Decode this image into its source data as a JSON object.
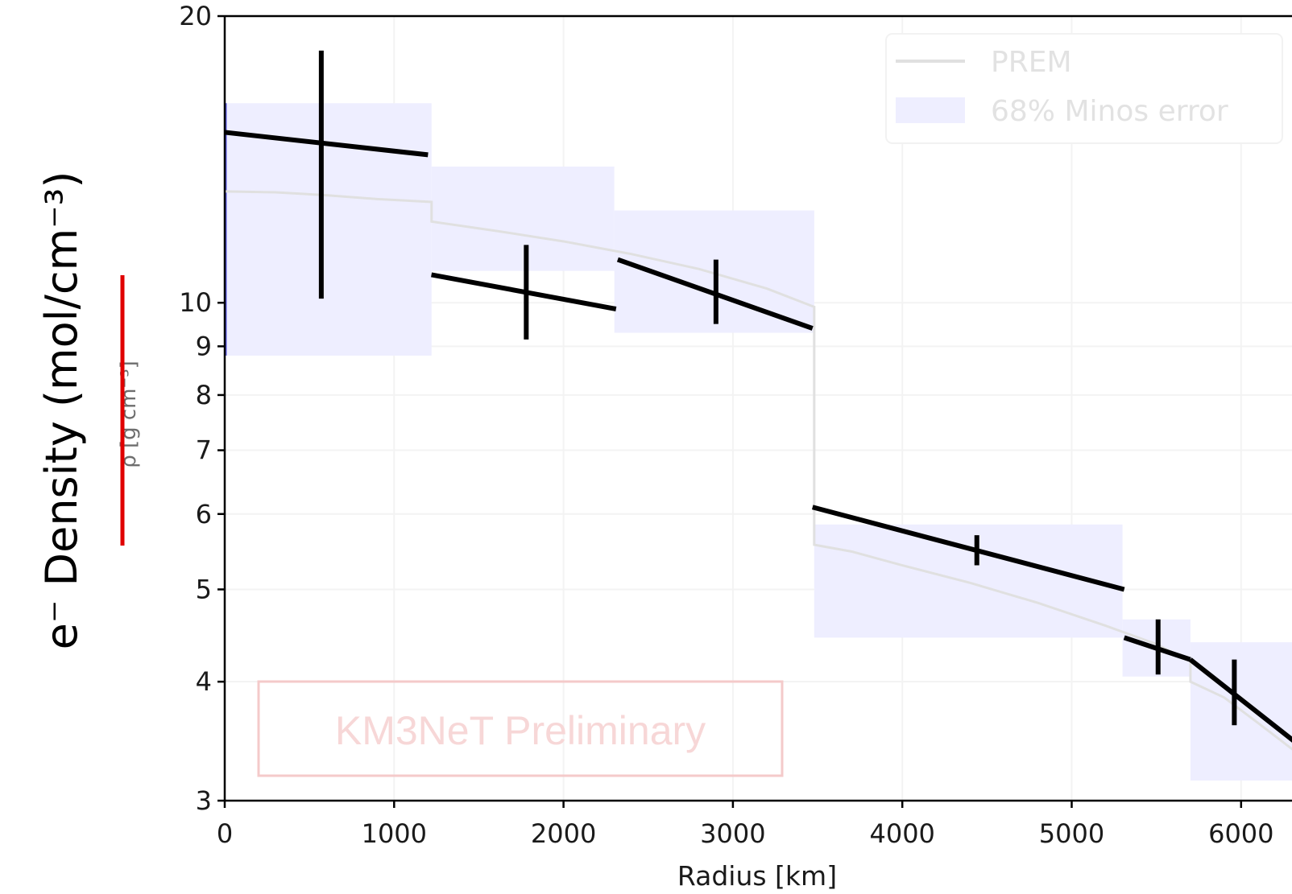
{
  "chart_data": {
    "type": "line",
    "xlabel": "Radius [km]",
    "ylabel": "e⁻ Density (mol/cm⁻³)",
    "ylabel_struck": "ρ [g cm⁻³]",
    "xlim": [
      0,
      6371
    ],
    "ylim": [
      3,
      20
    ],
    "yscale": "log",
    "xticks": [
      0,
      1000,
      2000,
      3000,
      4000,
      5000,
      6000
    ],
    "yticks": [
      3,
      4,
      5,
      6,
      7,
      8,
      9,
      10,
      20
    ],
    "grid": true,
    "legend": {
      "position": "top-right",
      "entries": [
        "PREM",
        "68% Minos error"
      ]
    },
    "watermark": "KM3NeT Preliminary",
    "colors": {
      "prem": "#e0e0e0",
      "band": "#eeeeff",
      "fit": "#000000",
      "strike": "#e00000",
      "watermark": "#f4caca"
    },
    "prem": [
      [
        0,
        13.09
      ],
      [
        300,
        13.06
      ],
      [
        600,
        12.97
      ],
      [
        900,
        12.85
      ],
      [
        1221,
        12.76
      ],
      [
        1221,
        12.17
      ],
      [
        1600,
        11.9
      ],
      [
        2000,
        11.6
      ],
      [
        2400,
        11.25
      ],
      [
        2800,
        10.85
      ],
      [
        3200,
        10.35
      ],
      [
        3480,
        9.9
      ],
      [
        3480,
        5.57
      ],
      [
        3700,
        5.48
      ],
      [
        4000,
        5.3
      ],
      [
        4400,
        5.08
      ],
      [
        4800,
        4.84
      ],
      [
        5200,
        4.58
      ],
      [
        5500,
        4.38
      ],
      [
        5701,
        4.2
      ],
      [
        5701,
        4.0
      ],
      [
        5900,
        3.85
      ],
      [
        6100,
        3.62
      ],
      [
        6300,
        3.4
      ],
      [
        6371,
        3.36
      ]
    ],
    "band": [
      {
        "x": [
          0,
          1221
        ],
        "lower": 8.8,
        "upper": 16.2
      },
      {
        "x": [
          1221,
          2300
        ],
        "lower": 10.8,
        "upper": 13.9
      },
      {
        "x": [
          2300,
          3480
        ],
        "lower": 9.3,
        "upper": 12.5
      },
      {
        "x": [
          3480,
          5300
        ],
        "lower": 4.45,
        "upper": 5.85
      },
      {
        "x": [
          5300,
          5701
        ],
        "lower": 4.05,
        "upper": 4.65
      },
      {
        "x": [
          5701,
          6371
        ],
        "lower": 3.15,
        "upper": 4.4
      }
    ],
    "series": [
      {
        "segments": [
          {
            "x": [
              0,
              1200
            ],
            "y": [
              15.1,
              14.3
            ]
          },
          {
            "x": [
              1220,
              2310
            ],
            "y": [
              10.7,
              9.85
            ]
          },
          {
            "x": [
              2320,
              3470
            ],
            "y": [
              11.1,
              9.4
            ]
          },
          {
            "x": [
              3470,
              5310
            ],
            "y": [
              6.1,
              5.0
            ]
          },
          {
            "x": [
              5310,
              5700
            ],
            "y": [
              4.45,
              4.22
            ]
          },
          {
            "x": [
              5700,
              6371
            ],
            "y": [
              4.22,
              3.4
            ]
          }
        ]
      }
    ],
    "points": [
      {
        "x": 570,
        "y": 14.7,
        "ylow": 10.1,
        "yhigh": 18.4
      },
      {
        "x": 1780,
        "y": 10.2,
        "ylow": 9.15,
        "yhigh": 11.5
      },
      {
        "x": 2900,
        "y": 10.2,
        "ylow": 9.5,
        "yhigh": 11.1
      },
      {
        "x": 4440,
        "y": 5.5,
        "ylow": 5.3,
        "yhigh": 5.7
      },
      {
        "x": 5510,
        "y": 4.32,
        "ylow": 4.07,
        "yhigh": 4.65
      },
      {
        "x": 5960,
        "y": 3.87,
        "ylow": 3.6,
        "yhigh": 4.22
      }
    ]
  }
}
